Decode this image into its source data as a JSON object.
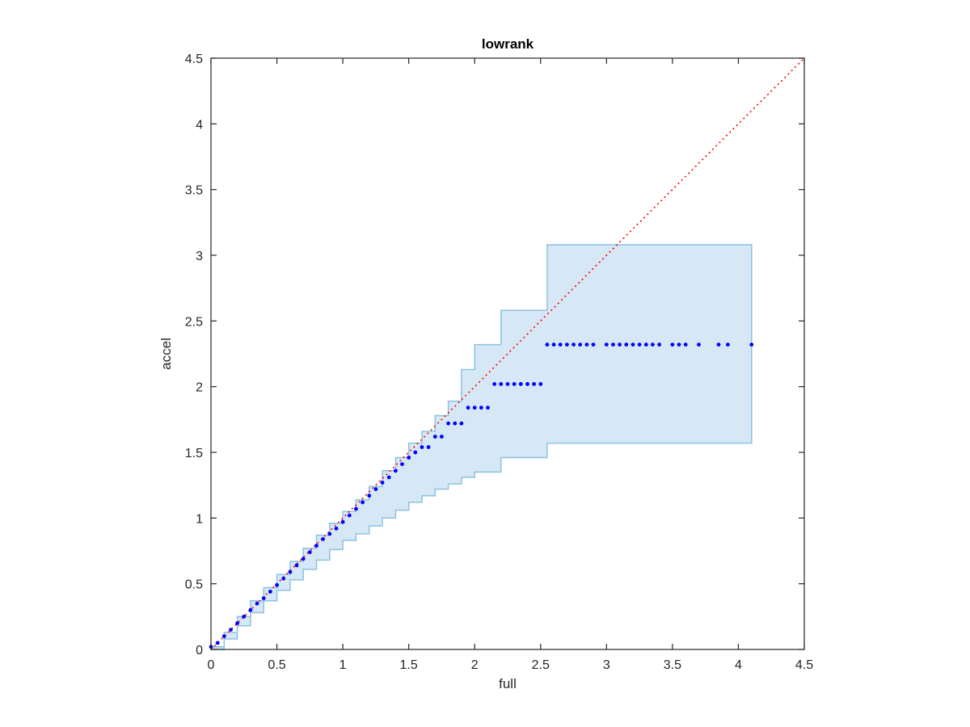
{
  "chart_data": {
    "type": "scatter",
    "title": "lowrank",
    "xlabel": "full",
    "ylabel": "accel",
    "xlim": [
      0,
      4.5
    ],
    "ylim": [
      0,
      4.5
    ],
    "x_ticks": [
      0,
      0.5,
      1,
      1.5,
      2,
      2.5,
      3,
      3.5,
      4,
      4.5
    ],
    "y_ticks": [
      0,
      0.5,
      1,
      1.5,
      2,
      2.5,
      3,
      3.5,
      4,
      4.5
    ],
    "x_tick_labels": [
      "0",
      "0.5",
      "1",
      "1.5",
      "2",
      "2.5",
      "3",
      "3.5",
      "4",
      "4.5"
    ],
    "y_tick_labels": [
      "0",
      "0.5",
      "1",
      "1.5",
      "2",
      "2.5",
      "3",
      "3.5",
      "4",
      "4.5"
    ],
    "grid": false,
    "colors": {
      "points": "#0000ff",
      "identity_line": "#ff0000",
      "band_fill": "#d6e8f5",
      "band_edge": "#8cc2e0",
      "axes": "#262626"
    },
    "identity_line": {
      "x": [
        0,
        4.5
      ],
      "y": [
        0,
        4.5
      ],
      "style": "dotted"
    },
    "band_upper": {
      "x": [
        0,
        0.1,
        0.2,
        0.3,
        0.4,
        0.5,
        0.6,
        0.7,
        0.8,
        0.9,
        1.0,
        1.1,
        1.2,
        1.3,
        1.4,
        1.5,
        1.6,
        1.7,
        1.8,
        1.9,
        2.0,
        2.2,
        2.55,
        4.1
      ],
      "y": [
        0.02,
        0.13,
        0.25,
        0.37,
        0.47,
        0.57,
        0.67,
        0.77,
        0.87,
        0.96,
        1.05,
        1.14,
        1.24,
        1.36,
        1.46,
        1.57,
        1.66,
        1.78,
        1.89,
        2.13,
        2.32,
        2.58,
        3.08,
        3.08
      ]
    },
    "band_lower": {
      "x": [
        0,
        0.1,
        0.2,
        0.3,
        0.4,
        0.5,
        0.6,
        0.7,
        0.8,
        0.9,
        1.0,
        1.1,
        1.2,
        1.3,
        1.4,
        1.5,
        1.6,
        1.7,
        1.8,
        1.9,
        2.0,
        2.2,
        2.55,
        4.1
      ],
      "y": [
        0,
        0.08,
        0.18,
        0.28,
        0.37,
        0.45,
        0.53,
        0.61,
        0.68,
        0.76,
        0.83,
        0.88,
        0.94,
        1.0,
        1.06,
        1.12,
        1.17,
        1.22,
        1.26,
        1.31,
        1.35,
        1.46,
        1.57,
        1.57
      ]
    },
    "series": [
      {
        "x": [
          0,
          0.05,
          0.1,
          0.15,
          0.2,
          0.25,
          0.3,
          0.35,
          0.4,
          0.45,
          0.5,
          0.55,
          0.6,
          0.65,
          0.7,
          0.75,
          0.8,
          0.85,
          0.9,
          0.95,
          1.0,
          1.05,
          1.1,
          1.15,
          1.2,
          1.25,
          1.3,
          1.35,
          1.4,
          1.45,
          1.5,
          1.55,
          1.6,
          1.65,
          1.7,
          1.75,
          1.8,
          1.85,
          1.9,
          1.95,
          2.0,
          2.05,
          2.1,
          2.15,
          2.2,
          2.25,
          2.3,
          2.35,
          2.4,
          2.45,
          2.5,
          2.55,
          2.6,
          2.65,
          2.7,
          2.75,
          2.8,
          2.85,
          2.9,
          3.0,
          3.05,
          3.1,
          3.15,
          3.2,
          3.25,
          3.3,
          3.35,
          3.4,
          3.5,
          3.55,
          3.6,
          3.7,
          3.85,
          3.92,
          4.1
        ],
        "y": [
          0.02,
          0.05,
          0.1,
          0.15,
          0.2,
          0.25,
          0.3,
          0.35,
          0.39,
          0.44,
          0.49,
          0.54,
          0.59,
          0.64,
          0.69,
          0.74,
          0.79,
          0.84,
          0.88,
          0.92,
          0.97,
          1.02,
          1.07,
          1.12,
          1.17,
          1.22,
          1.27,
          1.31,
          1.36,
          1.41,
          1.46,
          1.5,
          1.54,
          1.54,
          1.62,
          1.62,
          1.72,
          1.72,
          1.72,
          1.84,
          1.84,
          1.84,
          1.84,
          2.02,
          2.02,
          2.02,
          2.02,
          2.02,
          2.02,
          2.02,
          2.02,
          2.32,
          2.32,
          2.32,
          2.32,
          2.32,
          2.32,
          2.32,
          2.32,
          2.32,
          2.32,
          2.32,
          2.32,
          2.32,
          2.32,
          2.32,
          2.32,
          2.32,
          2.32,
          2.32,
          2.32,
          2.32,
          2.32,
          2.32,
          2.32
        ]
      }
    ]
  }
}
